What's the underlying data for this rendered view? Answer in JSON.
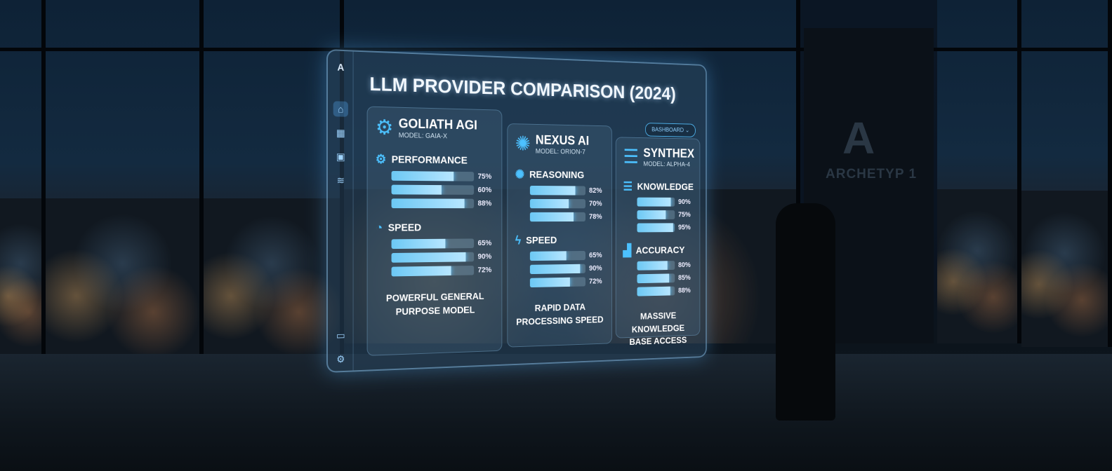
{
  "panel": {
    "title": "LLM PROVIDER COMPARISON (2024)",
    "dropdown": "BASHBOARD",
    "logo": "A"
  },
  "sidebar": [
    "home-icon",
    "grid-icon",
    "calendar-icon",
    "database-icon",
    "chat-icon",
    "gear-icon"
  ],
  "providers": [
    {
      "name": "GOLIATH AGI",
      "model": "MODEL: GAIA-X",
      "icon": "gear-icon",
      "sections": [
        {
          "label": "PERFORMANCE",
          "icon": "gear-icon",
          "values": [
            75,
            60,
            88
          ]
        },
        {
          "label": "SPEED",
          "icon": "gauge-icon",
          "values": [
            65,
            90,
            72
          ]
        }
      ],
      "footer": "POWERFUL GENERAL PURPOSE MODEL"
    },
    {
      "name": "NEXUS AI",
      "model": "MODEL: ORION-7",
      "icon": "brain-icon",
      "sections": [
        {
          "label": "REASONING",
          "icon": "brain-icon",
          "values": [
            82,
            70,
            78
          ]
        },
        {
          "label": "SPEED",
          "icon": "lightning-icon",
          "values": [
            65,
            90,
            72
          ]
        }
      ],
      "footer": "RAPID DATA PROCESSING SPEED"
    },
    {
      "name": "SYNTHEX",
      "model": "MODEL: ALPHA-4",
      "icon": "database-icon",
      "sections": [
        {
          "label": "KNOWLEDGE",
          "icon": "database-icon",
          "values": [
            90,
            75,
            95
          ]
        },
        {
          "label": "ACCURACY",
          "icon": "bar-chart-icon",
          "values": [
            80,
            85,
            88
          ]
        }
      ],
      "footer": "MASSIVE KNOWLEDGE BASE ACCESS"
    }
  ],
  "wall": {
    "logo": "A",
    "text": "ARCHETYP 1"
  },
  "colors": {
    "accent": "#4cc1ff",
    "bar": "#8fd6ff"
  }
}
